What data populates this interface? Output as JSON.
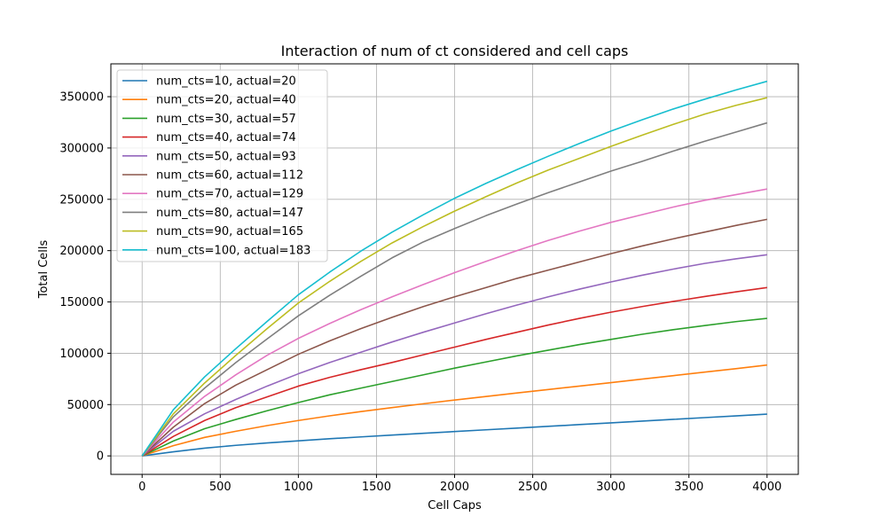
{
  "chart_data": {
    "type": "line",
    "title": "Interaction of num of ct considered and cell caps",
    "xlabel": "Cell Caps",
    "ylabel": "Total Cells",
    "xlim": [
      -200,
      4200
    ],
    "ylim": [
      -18000,
      382000
    ],
    "x_ticks": [
      0,
      500,
      1000,
      1500,
      2000,
      2500,
      3000,
      3500,
      4000
    ],
    "x_tick_labels": [
      "0",
      "500",
      "1000",
      "1500",
      "2000",
      "2500",
      "3000",
      "3500",
      "4000"
    ],
    "y_ticks": [
      0,
      50000,
      100000,
      150000,
      200000,
      250000,
      300000,
      350000
    ],
    "y_tick_labels": [
      "0",
      "50000",
      "100000",
      "150000",
      "200000",
      "250000",
      "300000",
      "350000"
    ],
    "grid": true,
    "legend_position": "top-left",
    "x": [
      0,
      200,
      400,
      600,
      800,
      1000,
      1200,
      1400,
      1600,
      1800,
      2000,
      2200,
      2400,
      2600,
      2800,
      3000,
      3200,
      3400,
      3600,
      3800,
      4000
    ],
    "series": [
      {
        "name": "num_cts=10, actual=20",
        "color": "#1f77b4",
        "values": [
          0,
          4000,
          7500,
          10300,
          12600,
          14700,
          16700,
          18500,
          20300,
          22000,
          23700,
          25400,
          27100,
          28800,
          30500,
          32200,
          33900,
          35600,
          37300,
          39000,
          40700
        ]
      },
      {
        "name": "num_cts=20, actual=40",
        "color": "#ff7f0e",
        "values": [
          0,
          10000,
          18000,
          24000,
          29500,
          34500,
          39000,
          43200,
          47100,
          50800,
          54400,
          57900,
          61300,
          64700,
          68000,
          71400,
          74800,
          78200,
          81600,
          85000,
          88500
        ]
      },
      {
        "name": "num_cts=30, actual=57",
        "color": "#2ca02c",
        "values": [
          0,
          14500,
          26500,
          35500,
          44000,
          52000,
          59500,
          66000,
          72500,
          79000,
          85500,
          91500,
          97500,
          103000,
          108500,
          113500,
          118500,
          123000,
          127000,
          130800,
          134000
        ]
      },
      {
        "name": "num_cts=40, actual=74",
        "color": "#d62728",
        "values": [
          0,
          19000,
          34500,
          47000,
          57500,
          68000,
          76500,
          84000,
          91000,
          98500,
          106000,
          113500,
          120500,
          127500,
          134000,
          140000,
          145500,
          150500,
          155300,
          159800,
          164000
        ]
      },
      {
        "name": "num_cts=50, actual=93",
        "color": "#9467bd",
        "values": [
          0,
          24000,
          41000,
          55000,
          68000,
          80000,
          91000,
          101000,
          111000,
          120500,
          129500,
          138500,
          147000,
          155000,
          162500,
          169500,
          176000,
          182000,
          187500,
          192000,
          196000
        ]
      },
      {
        "name": "num_cts=60, actual=112",
        "color": "#8c564b",
        "values": [
          0,
          28000,
          51000,
          69000,
          84000,
          99000,
          112000,
          124000,
          135000,
          145500,
          155000,
          164000,
          173000,
          181000,
          189000,
          197000,
          204500,
          211500,
          218000,
          224500,
          230500
        ]
      },
      {
        "name": "num_cts=70, actual=129",
        "color": "#e377c2",
        "values": [
          0,
          33000,
          58000,
          79000,
          98000,
          114500,
          129000,
          142500,
          155000,
          167000,
          178500,
          189500,
          200000,
          210000,
          219000,
          227500,
          235000,
          242500,
          249000,
          254500,
          260000
        ]
      },
      {
        "name": "num_cts=80, actual=147",
        "color": "#7f7f7f",
        "values": [
          0,
          38000,
          66000,
          91000,
          114000,
          136500,
          156500,
          175000,
          193000,
          208500,
          221500,
          234000,
          245500,
          256500,
          267000,
          277500,
          287000,
          297000,
          306500,
          315500,
          324500
        ]
      },
      {
        "name": "num_cts=90, actual=165",
        "color": "#bcbd22",
        "values": [
          0,
          41000,
          71000,
          98000,
          124000,
          149000,
          170000,
          189500,
          207500,
          223500,
          238500,
          252500,
          266000,
          278500,
          290000,
          301500,
          312500,
          323000,
          333000,
          341500,
          349000
        ]
      },
      {
        "name": "num_cts=100, actual=183",
        "color": "#17becf",
        "values": [
          0,
          45000,
          77000,
          104500,
          131000,
          157000,
          179000,
          199500,
          218000,
          235000,
          251000,
          265500,
          279000,
          292000,
          304500,
          316500,
          327500,
          338000,
          347500,
          356500,
          365000
        ]
      }
    ]
  }
}
